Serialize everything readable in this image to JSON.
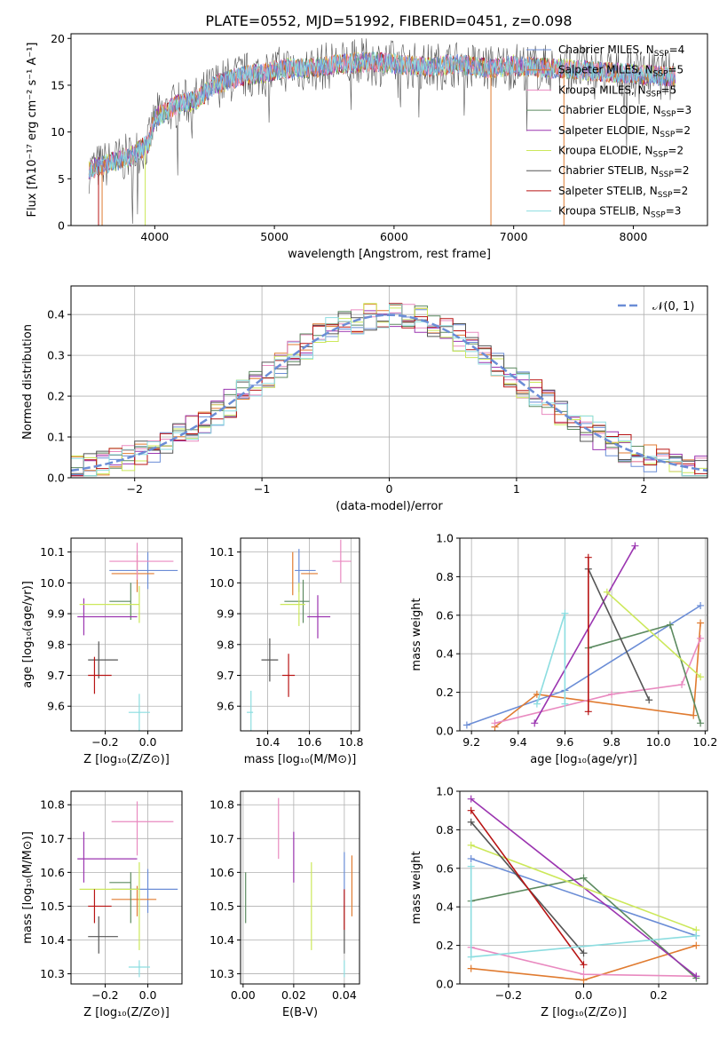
{
  "figure_title": "PLATE=0552, MJD=51992, FIBERID=0451, z=0.098",
  "colors": {
    "chabrier_miles": "#6b8dd6",
    "salpeter_miles": "#e07b30",
    "kroupa_miles": "#e98ac0",
    "chabrier_elodie": "#5c8a60",
    "salpeter_elodie": "#9b35b0",
    "kroupa_elodie": "#cce85a",
    "chabrier_stelib": "#555555",
    "salpeter_stelib": "#b81414",
    "kroupa_stelib": "#8cdde0",
    "gaussian": "#6b8dd6"
  },
  "chart_data": [
    {
      "id": "spectrum",
      "type": "line",
      "title": "PLATE=0552, MJD=51992, FIBERID=0451, z=0.098",
      "xlabel": "wavelength [Angstrom, rest frame]",
      "ylabel": "Flux [fλ10⁻¹⁷ erg cm⁻² s⁻¹ A⁻¹]",
      "xlim": [
        3300,
        8620
      ],
      "ylim": [
        0,
        20.5
      ],
      "xticks": [
        4000,
        5000,
        6000,
        7000,
        8000
      ],
      "yticks": [
        0,
        5,
        10,
        15,
        20
      ],
      "grid": false,
      "legend_position": "top-right",
      "continuum": [
        [
          3450,
          6
        ],
        [
          3600,
          6.6
        ],
        [
          3800,
          7.4
        ],
        [
          3950,
          8.8
        ],
        [
          4000,
          11.5
        ],
        [
          4200,
          13
        ],
        [
          4350,
          13.4
        ],
        [
          4500,
          15
        ],
        [
          4700,
          15.9
        ],
        [
          4900,
          16.3
        ],
        [
          5100,
          16.8
        ],
        [
          5300,
          16.8
        ],
        [
          5500,
          17.2
        ],
        [
          5800,
          17.5
        ],
        [
          6000,
          17.3
        ],
        [
          6300,
          16.9
        ],
        [
          6500,
          17.3
        ],
        [
          6800,
          16.8
        ],
        [
          7000,
          17.1
        ],
        [
          7300,
          16.8
        ],
        [
          7600,
          16.6
        ],
        [
          8000,
          16.2
        ],
        [
          8350,
          15.9
        ]
      ],
      "series": [
        {
          "name": "Chabrier MILES, N_SSP=4",
          "key": "chabrier_miles"
        },
        {
          "name": "Salpeter MILES, N_SSP=5",
          "key": "salpeter_miles"
        },
        {
          "name": "Kroupa MILES, N_SSP=5",
          "key": "kroupa_miles"
        },
        {
          "name": "Chabrier ELODIE, N_SSP=3",
          "key": "chabrier_elodie"
        },
        {
          "name": "Salpeter ELODIE, N_SSP=2",
          "key": "salpeter_elodie"
        },
        {
          "name": "Kroupa ELODIE, N_SSP=2",
          "key": "kroupa_elodie"
        },
        {
          "name": "Chabrier STELIB, N_SSP=2",
          "key": "chabrier_stelib"
        },
        {
          "name": "Salpeter STELIB, N_SSP=2",
          "key": "salpeter_stelib"
        },
        {
          "name": "Kroupa STELIB, N_SSP=3",
          "key": "kroupa_stelib"
        }
      ]
    },
    {
      "id": "residuals",
      "type": "line",
      "xlabel": "(data-model)/error",
      "ylabel": "Normed distribution",
      "xlim": [
        -2.5,
        2.5
      ],
      "ylim": [
        0,
        0.47
      ],
      "xticks": [
        -2,
        -1,
        0,
        1,
        2
      ],
      "yticks": [
        0.0,
        0.1,
        0.2,
        0.3,
        0.4
      ],
      "grid": true,
      "legend_position": "top-right",
      "legend": "𝒩(0, 1)",
      "bin_width": 0.1
    },
    {
      "id": "z_age",
      "type": "scatter",
      "xlabel": "Z [log₁₀(Z/Z⊙)]",
      "ylabel": "age  [log₁₀(age/yr)]",
      "xlim": [
        -0.36,
        0.16
      ],
      "ylim": [
        9.52,
        10.145
      ],
      "xticks": [
        -0.2,
        0.0
      ],
      "yticks": [
        9.6,
        9.7,
        9.8,
        9.9,
        10.0,
        10.1
      ],
      "grid": true
    },
    {
      "id": "mass_age",
      "type": "scatter",
      "xlabel": "mass [log₁₀(M/M⊙)]",
      "ylabel": "",
      "xlim": [
        10.27,
        10.84
      ],
      "ylim": [
        9.52,
        10.145
      ],
      "xticks": [
        10.4,
        10.6,
        10.8
      ],
      "yticks": [
        9.6,
        9.7,
        9.8,
        9.9,
        10.0,
        10.1
      ],
      "grid": true
    },
    {
      "id": "age_weight",
      "type": "line",
      "xlabel": "age  [log₁₀(age/yr)]",
      "ylabel": "mass weight",
      "xlim": [
        9.15,
        10.21
      ],
      "ylim": [
        0,
        1
      ],
      "xticks": [
        9.2,
        9.4,
        9.6,
        9.8,
        10.0,
        10.2
      ],
      "yticks": [
        0.0,
        0.2,
        0.4,
        0.6,
        0.8,
        1.0
      ],
      "grid": true
    },
    {
      "id": "z_mass",
      "type": "scatter",
      "xlabel": "Z [log₁₀(Z/Z⊙)]",
      "ylabel": "mass [log₁₀(M/M⊙)]",
      "xlim": [
        -0.36,
        0.16
      ],
      "ylim": [
        10.27,
        10.84
      ],
      "xticks": [
        -0.2,
        0.0
      ],
      "yticks": [
        10.3,
        10.4,
        10.5,
        10.6,
        10.7,
        10.8
      ],
      "grid": true
    },
    {
      "id": "ebv_mass",
      "type": "scatter",
      "xlabel": "E(B-V)",
      "ylabel": "",
      "xlim": [
        -0.001,
        0.046
      ],
      "ylim": [
        10.27,
        10.84
      ],
      "xticks": [
        0.0,
        0.02,
        0.04
      ],
      "yticks": [
        10.3,
        10.4,
        10.5,
        10.6,
        10.7,
        10.8
      ],
      "grid": true
    },
    {
      "id": "z_weight",
      "type": "line",
      "xlabel": "Z [log₁₀(Z/Z⊙)]",
      "ylabel": "mass weight",
      "xlim": [
        -0.33,
        0.33
      ],
      "ylim": [
        0,
        1
      ],
      "xticks": [
        -0.2,
        0.0,
        0.2
      ],
      "yticks": [
        0.0,
        0.2,
        0.4,
        0.6,
        0.8,
        1.0
      ],
      "grid": true
    }
  ],
  "models": [
    {
      "key": "chabrier_miles",
      "age": 10.04,
      "age_err": [
        10.04,
        10.04
      ],
      "Z": 0.0,
      "Z_err": [
        -0.18,
        0.14
      ],
      "mass": 10.55,
      "mass_err": [
        10.48,
        10.61
      ],
      "mass_xerr": [
        -0.17,
        0.14
      ],
      "ebv": 0.04,
      "ebv_err": [
        10.5,
        10.66
      ],
      "age_mass_xerr": [
        10.53,
        10.63
      ],
      "age_mass_yerr": [
        10.04,
        10.04
      ],
      "sfh_age": [
        [
          9.18,
          0.03
        ],
        [
          9.6,
          0.21
        ],
        [
          10.18,
          0.65
        ]
      ],
      "sfh_z": [
        [
          -0.3,
          0.65
        ],
        [
          0.3,
          0.25
        ]
      ]
    },
    {
      "key": "salpeter_miles",
      "age": 10.03,
      "age_err": [
        10.03,
        10.03
      ],
      "Z": -0.05,
      "Z_err": [
        -0.17,
        0.03
      ],
      "mass": 10.52,
      "mass_err": [
        10.47,
        10.56
      ],
      "mass_xerr": [
        -0.17,
        0.04
      ],
      "ebv": 0.043,
      "ebv_err": [
        10.47,
        10.65
      ],
      "age_mass_xerr": [
        10.56,
        10.64
      ],
      "age_mass_yerr": [
        10.03,
        10.03
      ],
      "sfh_age": [
        [
          9.3,
          0.02
        ],
        [
          9.48,
          0.19
        ],
        [
          10.15,
          0.08
        ],
        [
          10.18,
          0.56
        ]
      ],
      "sfh_z": [
        [
          -0.3,
          0.08
        ],
        [
          0.0,
          0.02
        ],
        [
          0.3,
          0.2
        ]
      ]
    },
    {
      "key": "kroupa_miles",
      "age": 10.07,
      "age_err": [
        10.07,
        10.07
      ],
      "Z": -0.05,
      "Z_err": [
        -0.18,
        0.12
      ],
      "mass": 10.75,
      "mass_err": [
        10.65,
        10.81
      ],
      "mass_xerr": [
        -0.17,
        0.12
      ],
      "ebv": 0.014,
      "ebv_err": [
        10.64,
        10.82
      ],
      "age_mass_xerr": [
        10.71,
        10.8
      ],
      "age_mass_yerr": [
        10.07,
        10.07
      ],
      "sfh_age": [
        [
          9.3,
          0.04
        ],
        [
          9.8,
          0.19
        ],
        [
          10.1,
          0.24
        ],
        [
          10.18,
          0.48
        ]
      ],
      "sfh_z": [
        [
          -0.3,
          0.19
        ],
        [
          0.0,
          0.05
        ],
        [
          0.3,
          0.04
        ]
      ]
    },
    {
      "key": "chabrier_elodie",
      "age": 9.94,
      "age_err": [
        9.82,
        9.94
      ],
      "Z": -0.08,
      "Z_err": [
        -0.18,
        -0.08
      ],
      "mass": 10.57,
      "mass_err": [
        10.45,
        10.6
      ],
      "mass_xerr": [
        -0.18,
        -0.08
      ],
      "ebv": 0.001,
      "ebv_err": [
        10.45,
        10.6
      ],
      "age_mass_xerr": [
        10.48,
        10.6
      ],
      "age_mass_yerr": [
        9.82,
        9.96
      ],
      "sfh_age": [
        [
          9.7,
          0.43
        ],
        [
          10.05,
          0.55
        ],
        [
          10.18,
          0.04
        ]
      ],
      "sfh_z": [
        [
          -0.3,
          0.43
        ],
        [
          0.0,
          0.55
        ],
        [
          0.3,
          0.03
        ]
      ]
    },
    {
      "key": "salpeter_elodie",
      "age": 9.89,
      "age_err": [
        9.77,
        10.0
      ],
      "Z": -0.3,
      "Z_err": [
        -0.33,
        -0.05
      ],
      "mass": 10.64,
      "mass_err": [
        10.57,
        10.72
      ],
      "mass_xerr": [
        -0.33,
        -0.05
      ],
      "ebv": 0.02,
      "ebv_err": [
        10.57,
        10.72
      ],
      "age_mass_xerr": [
        10.59,
        10.7
      ],
      "age_mass_yerr": [
        9.77,
        9.98
      ],
      "sfh_age": [
        [
          9.47,
          0.04
        ],
        [
          9.9,
          0.96
        ]
      ],
      "sfh_z": [
        [
          -0.3,
          0.96
        ],
        [
          0.3,
          0.04
        ]
      ]
    },
    {
      "key": "kroupa_elodie",
      "age": 9.93,
      "age_err": [
        9.69,
        9.93
      ],
      "Z": -0.04,
      "Z_err": [
        -0.32,
        -0.04
      ],
      "mass": 10.55,
      "mass_err": [
        10.37,
        10.63
      ],
      "mass_xerr": [
        -0.32,
        -0.04
      ],
      "ebv": 0.027,
      "ebv_err": [
        10.37,
        10.63
      ],
      "age_mass_xerr": [
        10.46,
        10.58
      ],
      "age_mass_yerr": [
        9.69,
        9.93
      ],
      "sfh_age": [
        [
          9.78,
          0.72
        ],
        [
          10.18,
          0.28
        ]
      ],
      "sfh_z": [
        [
          -0.3,
          0.72
        ],
        [
          0.3,
          0.28
        ]
      ]
    },
    {
      "key": "chabrier_stelib",
      "age": 9.75,
      "age_err": [
        9.68,
        9.88
      ],
      "Z": -0.23,
      "Z_err": [
        -0.28,
        -0.14
      ],
      "mass": 10.41,
      "mass_err": [
        10.36,
        10.47
      ],
      "mass_xerr": [
        -0.28,
        -0.14
      ],
      "ebv": 0.04,
      "ebv_err": [
        10.36,
        10.5
      ],
      "age_mass_xerr": [
        10.37,
        10.45
      ],
      "age_mass_yerr": [
        9.68,
        9.88
      ],
      "sfh_age": [
        [
          9.7,
          0.84
        ],
        [
          9.96,
          0.16
        ]
      ],
      "sfh_z": [
        [
          -0.3,
          0.84
        ],
        [
          0.0,
          0.16
        ]
      ]
    },
    {
      "key": "salpeter_stelib",
      "age": 9.7,
      "age_err": [
        9.66,
        9.85
      ],
      "Z": -0.25,
      "Z_err": [
        -0.28,
        -0.17
      ],
      "mass": 10.5,
      "mass_err": [
        10.45,
        10.55
      ],
      "mass_xerr": [
        -0.28,
        -0.17
      ],
      "ebv": 0.04,
      "ebv_err": [
        10.43,
        10.55
      ],
      "age_mass_xerr": [
        10.47,
        10.53
      ],
      "age_mass_yerr": [
        9.66,
        9.85
      ],
      "sfh_age": [
        [
          9.7,
          0.9
        ],
        [
          9.7,
          0.1
        ]
      ],
      "sfh_z": [
        [
          -0.3,
          0.9
        ],
        [
          0.0,
          0.1
        ]
      ]
    },
    {
      "key": "kroupa_stelib",
      "age": 9.58,
      "age_err": [
        9.54,
        9.66
      ],
      "Z": -0.04,
      "Z_err": [
        -0.09,
        0.01
      ],
      "mass": 10.32,
      "mass_err": [
        10.29,
        10.34
      ],
      "mass_xerr": [
        -0.09,
        0.01
      ],
      "ebv": 0.04,
      "ebv_err": [
        10.29,
        10.34
      ],
      "age_mass_xerr": [
        10.3,
        10.33
      ],
      "age_mass_yerr": [
        9.54,
        9.66
      ],
      "sfh_age": [
        [
          9.48,
          0.14
        ],
        [
          9.6,
          0.61
        ],
        [
          9.6,
          0.14
        ]
      ],
      "sfh_z": [
        [
          -0.3,
          0.61
        ],
        [
          -0.3,
          0.14
        ],
        [
          0.3,
          0.25
        ]
      ]
    }
  ]
}
